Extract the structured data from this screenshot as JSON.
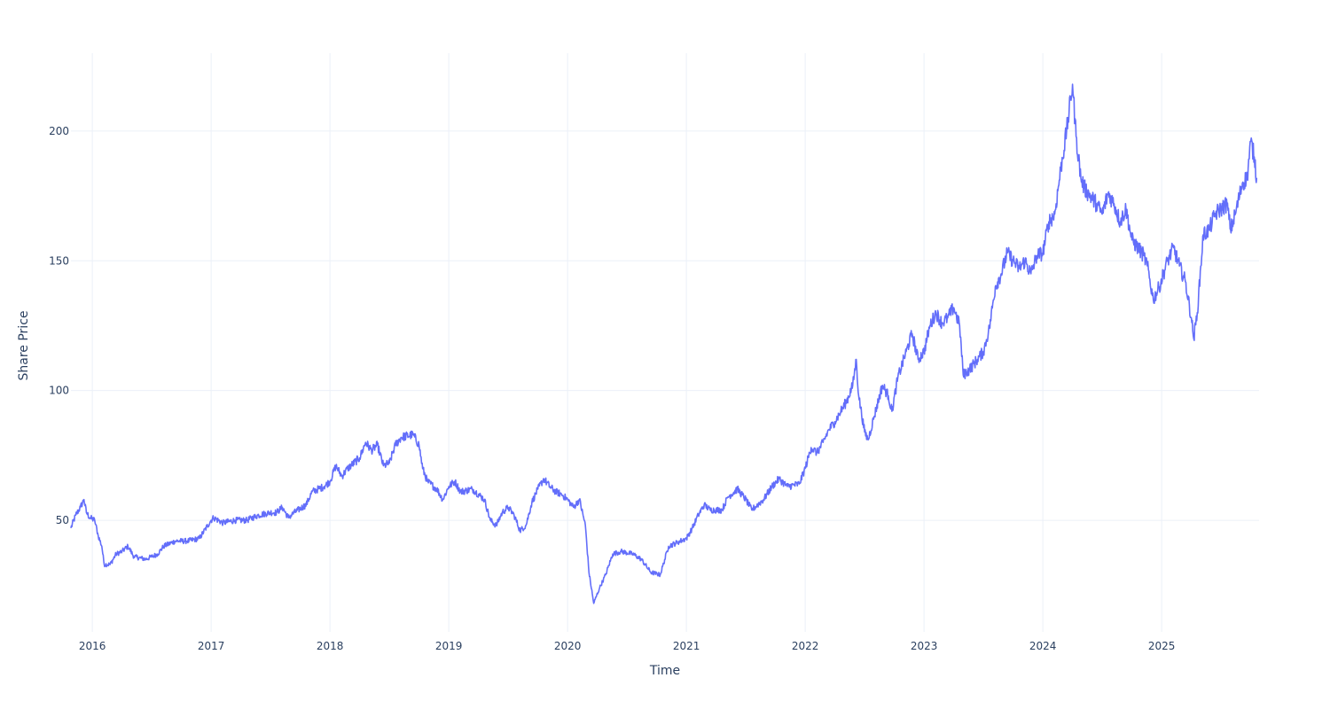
{
  "chart_data": {
    "type": "line",
    "title": "",
    "xlabel": "Time",
    "ylabel": "Share Price",
    "xlim": [
      2015.82,
      2025.82
    ],
    "ylim": [
      7,
      230
    ],
    "x_ticks": [
      {
        "value": 2016,
        "label": "2016"
      },
      {
        "value": 2017,
        "label": "2017"
      },
      {
        "value": 2018,
        "label": "2018"
      },
      {
        "value": 2019,
        "label": "2019"
      },
      {
        "value": 2020,
        "label": "2020"
      },
      {
        "value": 2021,
        "label": "2021"
      },
      {
        "value": 2022,
        "label": "2022"
      },
      {
        "value": 2023,
        "label": "2023"
      },
      {
        "value": 2024,
        "label": "2024"
      },
      {
        "value": 2025,
        "label": "2025"
      }
    ],
    "y_ticks": [
      {
        "value": 50,
        "label": "50"
      },
      {
        "value": 100,
        "label": "100"
      },
      {
        "value": 150,
        "label": "150"
      },
      {
        "value": 200,
        "label": "200"
      }
    ],
    "grid": true,
    "series": [
      {
        "name": "Share Price",
        "color": "#636efa",
        "points": [
          [
            2015.82,
            47
          ],
          [
            2015.86,
            52
          ],
          [
            2015.9,
            55
          ],
          [
            2015.93,
            58
          ],
          [
            2015.95,
            53
          ],
          [
            2015.98,
            51
          ],
          [
            2016.02,
            50
          ],
          [
            2016.05,
            44
          ],
          [
            2016.08,
            40
          ],
          [
            2016.1,
            33
          ],
          [
            2016.15,
            33
          ],
          [
            2016.2,
            37
          ],
          [
            2016.25,
            38
          ],
          [
            2016.3,
            40
          ],
          [
            2016.35,
            36
          ],
          [
            2016.45,
            35
          ],
          [
            2016.5,
            36
          ],
          [
            2016.55,
            37
          ],
          [
            2016.6,
            40
          ],
          [
            2016.7,
            42
          ],
          [
            2016.8,
            42
          ],
          [
            2016.9,
            43
          ],
          [
            2017.0,
            50
          ],
          [
            2017.02,
            51
          ],
          [
            2017.1,
            49
          ],
          [
            2017.2,
            50
          ],
          [
            2017.3,
            50
          ],
          [
            2017.4,
            52
          ],
          [
            2017.5,
            53
          ],
          [
            2017.55,
            53
          ],
          [
            2017.6,
            55
          ],
          [
            2017.65,
            51
          ],
          [
            2017.7,
            53
          ],
          [
            2017.8,
            56
          ],
          [
            2017.85,
            61
          ],
          [
            2017.95,
            63
          ],
          [
            2018.0,
            65
          ],
          [
            2018.05,
            71
          ],
          [
            2018.1,
            67
          ],
          [
            2018.15,
            70
          ],
          [
            2018.25,
            74
          ],
          [
            2018.3,
            80
          ],
          [
            2018.35,
            77
          ],
          [
            2018.4,
            79
          ],
          [
            2018.45,
            71
          ],
          [
            2018.5,
            72
          ],
          [
            2018.55,
            79
          ],
          [
            2018.6,
            82
          ],
          [
            2018.7,
            83
          ],
          [
            2018.75,
            79
          ],
          [
            2018.78,
            70
          ],
          [
            2018.82,
            65
          ],
          [
            2018.9,
            62
          ],
          [
            2018.95,
            58
          ],
          [
            2019.0,
            63
          ],
          [
            2019.05,
            65
          ],
          [
            2019.1,
            61
          ],
          [
            2019.2,
            62
          ],
          [
            2019.3,
            58
          ],
          [
            2019.35,
            50
          ],
          [
            2019.4,
            48
          ],
          [
            2019.45,
            53
          ],
          [
            2019.5,
            55
          ],
          [
            2019.55,
            52
          ],
          [
            2019.6,
            46
          ],
          [
            2019.65,
            48
          ],
          [
            2019.7,
            57
          ],
          [
            2019.75,
            62
          ],
          [
            2019.8,
            66
          ],
          [
            2019.85,
            63
          ],
          [
            2019.9,
            61
          ],
          [
            2019.95,
            60
          ],
          [
            2020.0,
            58
          ],
          [
            2020.05,
            55
          ],
          [
            2020.1,
            58
          ],
          [
            2020.15,
            48
          ],
          [
            2020.18,
            30
          ],
          [
            2020.22,
            18
          ],
          [
            2020.27,
            24
          ],
          [
            2020.32,
            29
          ],
          [
            2020.38,
            37
          ],
          [
            2020.45,
            38
          ],
          [
            2020.55,
            37
          ],
          [
            2020.62,
            35
          ],
          [
            2020.7,
            30
          ],
          [
            2020.78,
            29
          ],
          [
            2020.85,
            40
          ],
          [
            2020.95,
            42
          ],
          [
            2021.0,
            43
          ],
          [
            2021.05,
            47
          ],
          [
            2021.1,
            52
          ],
          [
            2021.15,
            56
          ],
          [
            2021.2,
            54
          ],
          [
            2021.3,
            54
          ],
          [
            2021.35,
            59
          ],
          [
            2021.43,
            62
          ],
          [
            2021.5,
            58
          ],
          [
            2021.55,
            54
          ],
          [
            2021.6,
            56
          ],
          [
            2021.65,
            58
          ],
          [
            2021.72,
            63
          ],
          [
            2021.78,
            66
          ],
          [
            2021.85,
            63
          ],
          [
            2021.95,
            64
          ],
          [
            2022.0,
            70
          ],
          [
            2022.05,
            78
          ],
          [
            2022.1,
            76
          ],
          [
            2022.15,
            80
          ],
          [
            2022.2,
            85
          ],
          [
            2022.25,
            88
          ],
          [
            2022.3,
            92
          ],
          [
            2022.35,
            96
          ],
          [
            2022.4,
            102
          ],
          [
            2022.43,
            112
          ],
          [
            2022.45,
            98
          ],
          [
            2022.5,
            84
          ],
          [
            2022.53,
            81
          ],
          [
            2022.58,
            90
          ],
          [
            2022.65,
            102
          ],
          [
            2022.7,
            98
          ],
          [
            2022.73,
            92
          ],
          [
            2022.78,
            105
          ],
          [
            2022.85,
            115
          ],
          [
            2022.9,
            122
          ],
          [
            2022.95,
            112
          ],
          [
            2023.0,
            115
          ],
          [
            2023.05,
            125
          ],
          [
            2023.1,
            130
          ],
          [
            2023.15,
            126
          ],
          [
            2023.2,
            128
          ],
          [
            2023.25,
            132
          ],
          [
            2023.3,
            125
          ],
          [
            2023.33,
            106
          ],
          [
            2023.38,
            108
          ],
          [
            2023.45,
            112
          ],
          [
            2023.5,
            115
          ],
          [
            2023.55,
            124
          ],
          [
            2023.6,
            140
          ],
          [
            2023.65,
            145
          ],
          [
            2023.7,
            153
          ],
          [
            2023.75,
            150
          ],
          [
            2023.8,
            147
          ],
          [
            2023.85,
            150
          ],
          [
            2023.9,
            145
          ],
          [
            2023.95,
            152
          ],
          [
            2024.0,
            153
          ],
          [
            2024.05,
            165
          ],
          [
            2024.1,
            168
          ],
          [
            2024.15,
            185
          ],
          [
            2024.2,
            200
          ],
          [
            2024.25,
            218
          ],
          [
            2024.28,
            198
          ],
          [
            2024.32,
            182
          ],
          [
            2024.35,
            178
          ],
          [
            2024.4,
            175
          ],
          [
            2024.45,
            172
          ],
          [
            2024.5,
            168
          ],
          [
            2024.55,
            176
          ],
          [
            2024.6,
            172
          ],
          [
            2024.65,
            165
          ],
          [
            2024.7,
            170
          ],
          [
            2024.75,
            158
          ],
          [
            2024.8,
            155
          ],
          [
            2024.85,
            152
          ],
          [
            2024.88,
            148
          ],
          [
            2024.93,
            135
          ],
          [
            2024.98,
            140
          ],
          [
            2025.05,
            150
          ],
          [
            2025.1,
            155
          ],
          [
            2025.15,
            148
          ],
          [
            2025.2,
            142
          ],
          [
            2025.25,
            128
          ],
          [
            2025.27,
            120
          ],
          [
            2025.3,
            130
          ],
          [
            2025.35,
            160
          ],
          [
            2025.4,
            162
          ],
          [
            2025.45,
            168
          ],
          [
            2025.5,
            170
          ],
          [
            2025.55,
            172
          ],
          [
            2025.58,
            162
          ],
          [
            2025.62,
            168
          ],
          [
            2025.68,
            180
          ],
          [
            2025.72,
            182
          ],
          [
            2025.75,
            196
          ],
          [
            2025.78,
            190
          ],
          [
            2025.8,
            182
          ]
        ]
      }
    ]
  }
}
